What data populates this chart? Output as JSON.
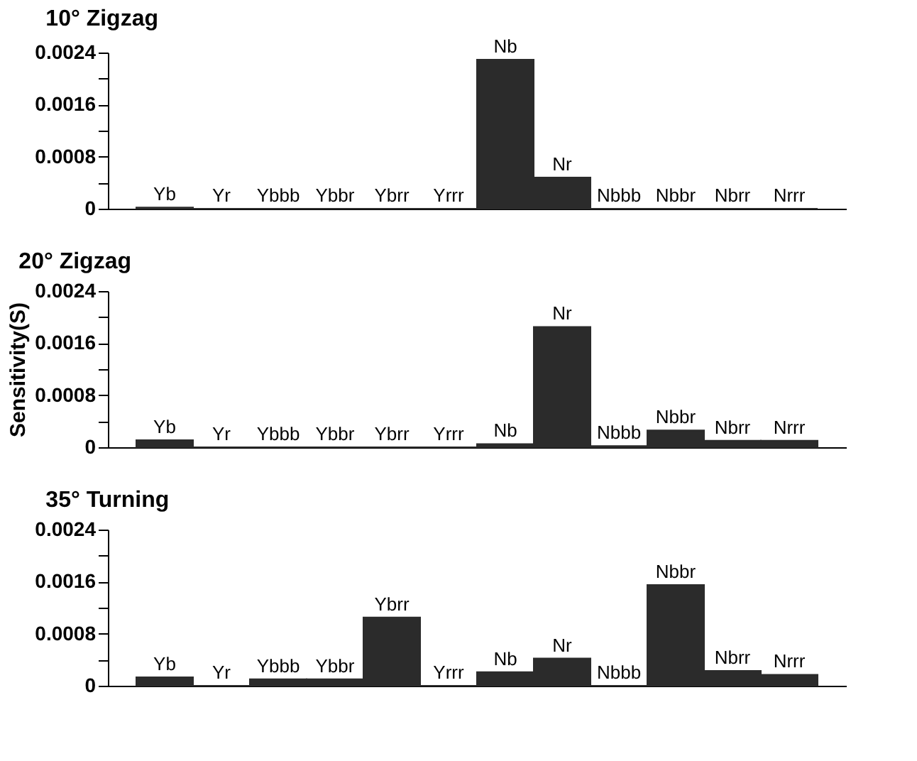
{
  "chart_data": [
    {
      "type": "bar",
      "title": "10° Zigzag",
      "categories": [
        "Yb",
        "Yr",
        "Ybbb",
        "Ybbr",
        "Ybrr",
        "Yrrr",
        "Nb",
        "Nr",
        "Nbbb",
        "Nbbr",
        "Nbrr",
        "Nrrr"
      ],
      "values": [
        2e-05,
        0,
        0,
        0,
        0,
        0,
        0.00229,
        0.00048,
        0,
        0,
        0,
        0
      ],
      "color": "#2b2b2b",
      "ylim": [
        0,
        0.0024
      ],
      "yticks": [
        0,
        {
          "value": 0.0004,
          "label": null
        },
        0.0008,
        {
          "value": 0.0012,
          "label": null
        },
        0.0016,
        {
          "value": 0.002,
          "label": null
        },
        0.0024
      ],
      "tick_labels": "y",
      "grid": false
    },
    {
      "type": "bar",
      "title": "20° Zigzag",
      "ylabel": "Sensitivity(S)",
      "categories": [
        "Yb",
        "Yr",
        "Ybbb",
        "Ybbr",
        "Ybrr",
        "Yrrr",
        "Nb",
        "Nr",
        "Nbbb",
        "Nbbr",
        "Nbrr",
        "Nrrr"
      ],
      "values": [
        0.00011,
        0,
        0,
        0,
        0,
        0,
        5e-05,
        0.00185,
        2e-05,
        0.00026,
        0.0001,
        0.0001
      ],
      "color": "#2b2b2b",
      "ylim": [
        0,
        0.0024
      ],
      "yticks": [
        0,
        {
          "value": 0.0004,
          "label": null
        },
        0.0008,
        {
          "value": 0.0012,
          "label": null
        },
        0.0016,
        {
          "value": 0.002,
          "label": null
        },
        0.0024
      ],
      "tick_labels": "y",
      "grid": false
    },
    {
      "type": "bar",
      "title": "35° Turning",
      "categories": [
        "Yb",
        "Yr",
        "Ybbb",
        "Ybbr",
        "Ybrr",
        "Yrrr",
        "Nb",
        "Nr",
        "Nbbb",
        "Nbbr",
        "Nbrr",
        "Nrrr"
      ],
      "values": [
        0.00013,
        0,
        0.0001,
        0.0001,
        0.00105,
        0,
        0.00021,
        0.00042,
        0,
        0.00155,
        0.00023,
        0.00017
      ],
      "color": "#2b2b2b",
      "ylim": [
        0,
        0.0024
      ],
      "yticks": [
        0,
        {
          "value": 0.0004,
          "label": null
        },
        0.0008,
        {
          "value": 0.0012,
          "label": null
        },
        0.0016,
        {
          "value": 0.002,
          "label": null
        },
        0.0024
      ],
      "tick_labels": "y",
      "grid": false
    }
  ]
}
